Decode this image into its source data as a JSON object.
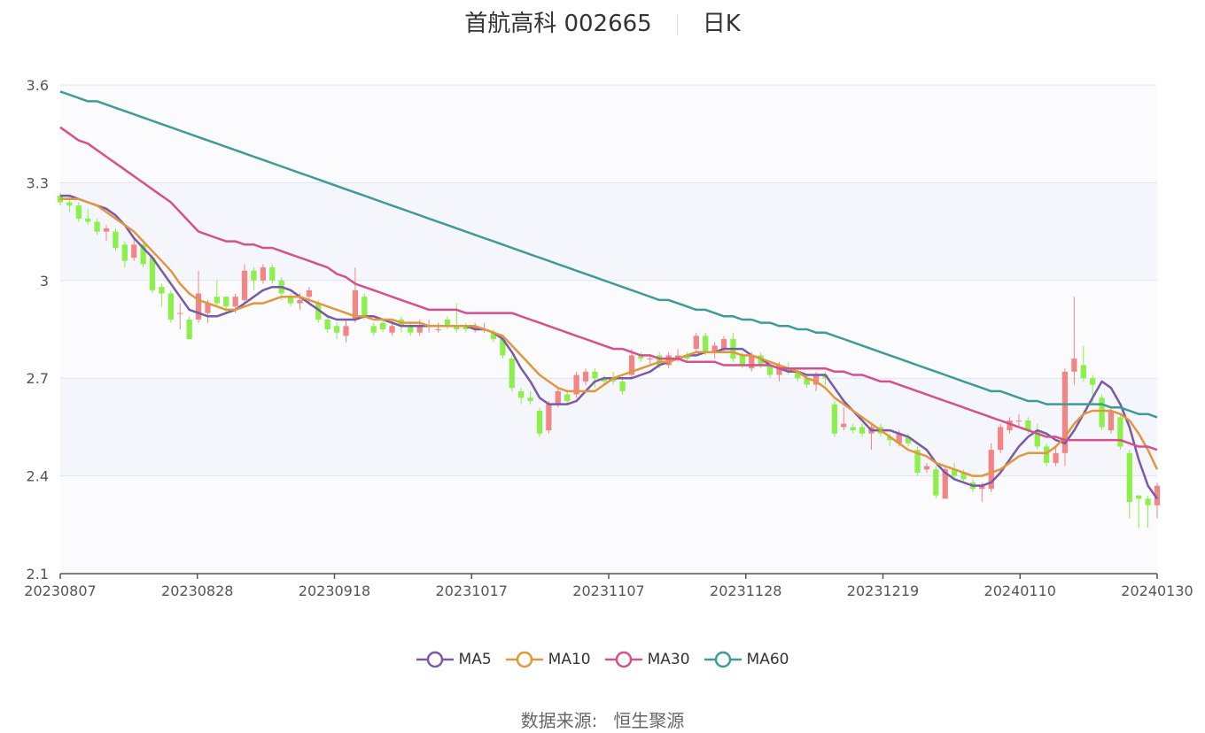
{
  "title": {
    "name": "首航高科 002665",
    "period": "日K"
  },
  "source": {
    "label": "数据来源:",
    "name": "恒生聚源"
  },
  "colors": {
    "up": "#f28585",
    "down": "#8bf049",
    "grid": "#dde3ef",
    "band": "#f5f6fb"
  },
  "chart_data": {
    "type": "candlestick",
    "y_ticks": [
      "2.1",
      "2.4",
      "2.7",
      "3",
      "3.3",
      "3.6"
    ],
    "ylim": [
      2.1,
      3.6
    ],
    "x_ticks": [
      "20230807",
      "20230828",
      "20230918",
      "20231017",
      "20231107",
      "20231128",
      "20231219",
      "20240110",
      "20240130"
    ],
    "n_bars": 120,
    "candles": [
      [
        3.26,
        3.24,
        3.27,
        3.23
      ],
      [
        3.24,
        3.23,
        3.26,
        3.21
      ],
      [
        3.23,
        3.19,
        3.24,
        3.18
      ],
      [
        3.19,
        3.18,
        3.22,
        3.17
      ],
      [
        3.18,
        3.15,
        3.19,
        3.14
      ],
      [
        3.15,
        3.16,
        3.17,
        3.12
      ],
      [
        3.15,
        3.1,
        3.16,
        3.09
      ],
      [
        3.11,
        3.06,
        3.12,
        3.04
      ],
      [
        3.07,
        3.11,
        3.13,
        3.06
      ],
      [
        3.11,
        3.05,
        3.12,
        3.04
      ],
      [
        3.07,
        2.97,
        3.08,
        2.96
      ],
      [
        2.98,
        2.96,
        2.99,
        2.92
      ],
      [
        2.96,
        2.88,
        2.97,
        2.87
      ],
      [
        2.9,
        2.9,
        2.93,
        2.85
      ],
      [
        2.88,
        2.82,
        2.89,
        2.82
      ],
      [
        2.88,
        2.96,
        3.03,
        2.87
      ],
      [
        2.9,
        2.93,
        2.94,
        2.87
      ],
      [
        2.95,
        2.93,
        3.0,
        2.92
      ],
      [
        2.95,
        2.92,
        2.95,
        2.9
      ],
      [
        2.92,
        2.95,
        2.96,
        2.9
      ],
      [
        2.94,
        3.03,
        3.05,
        2.93
      ],
      [
        3.03,
        3.0,
        3.04,
        2.97
      ],
      [
        3.0,
        3.04,
        3.05,
        2.99
      ],
      [
        3.04,
        3.0,
        3.05,
        2.99
      ],
      [
        3.0,
        2.96,
        3.01,
        2.94
      ],
      [
        2.95,
        2.93,
        2.96,
        2.92
      ],
      [
        2.93,
        2.94,
        2.96,
        2.91
      ],
      [
        2.95,
        2.97,
        2.98,
        2.93
      ],
      [
        2.93,
        2.88,
        2.94,
        2.87
      ],
      [
        2.88,
        2.85,
        2.89,
        2.84
      ],
      [
        2.86,
        2.84,
        2.87,
        2.82
      ],
      [
        2.83,
        2.86,
        2.88,
        2.81
      ],
      [
        2.88,
        2.97,
        3.04,
        2.87
      ],
      [
        2.95,
        2.89,
        2.96,
        2.88
      ],
      [
        2.86,
        2.84,
        2.87,
        2.83
      ],
      [
        2.87,
        2.85,
        2.88,
        2.84
      ],
      [
        2.84,
        2.86,
        2.88,
        2.83
      ],
      [
        2.88,
        2.86,
        2.89,
        2.84
      ],
      [
        2.86,
        2.84,
        2.87,
        2.83
      ],
      [
        2.84,
        2.86,
        2.88,
        2.83
      ],
      [
        2.86,
        2.86,
        2.88,
        2.84
      ],
      [
        2.85,
        2.85,
        2.87,
        2.84
      ],
      [
        2.88,
        2.86,
        2.89,
        2.85
      ],
      [
        2.86,
        2.85,
        2.93,
        2.84
      ],
      [
        2.86,
        2.85,
        2.87,
        2.84
      ],
      [
        2.85,
        2.86,
        2.87,
        2.84
      ],
      [
        2.85,
        2.85,
        2.87,
        2.84
      ],
      [
        2.84,
        2.82,
        2.85,
        2.81
      ],
      [
        2.82,
        2.77,
        2.83,
        2.76
      ],
      [
        2.76,
        2.67,
        2.77,
        2.66
      ],
      [
        2.66,
        2.64,
        2.67,
        2.62
      ],
      [
        2.64,
        2.63,
        2.66,
        2.62
      ],
      [
        2.6,
        2.53,
        2.61,
        2.52
      ],
      [
        2.54,
        2.62,
        2.63,
        2.53
      ],
      [
        2.62,
        2.66,
        2.67,
        2.61
      ],
      [
        2.65,
        2.63,
        2.66,
        2.62
      ],
      [
        2.65,
        2.71,
        2.72,
        2.64
      ],
      [
        2.69,
        2.72,
        2.73,
        2.68
      ],
      [
        2.72,
        2.7,
        2.73,
        2.67
      ],
      [
        2.7,
        2.69,
        2.71,
        2.68
      ],
      [
        2.7,
        2.69,
        2.72,
        2.68
      ],
      [
        2.69,
        2.66,
        2.7,
        2.65
      ],
      [
        2.71,
        2.77,
        2.79,
        2.7
      ],
      [
        2.77,
        2.76,
        2.78,
        2.75
      ],
      [
        2.76,
        2.76,
        2.77,
        2.74
      ],
      [
        2.77,
        2.74,
        2.78,
        2.73
      ],
      [
        2.74,
        2.77,
        2.78,
        2.73
      ],
      [
        2.76,
        2.77,
        2.79,
        2.75
      ],
      [
        2.77,
        2.76,
        2.78,
        2.75
      ],
      [
        2.79,
        2.83,
        2.84,
        2.78
      ],
      [
        2.83,
        2.78,
        2.84,
        2.77
      ],
      [
        2.78,
        2.8,
        2.81,
        2.76
      ],
      [
        2.79,
        2.82,
        2.83,
        2.78
      ],
      [
        2.82,
        2.76,
        2.84,
        2.75
      ],
      [
        2.77,
        2.74,
        2.78,
        2.73
      ],
      [
        2.73,
        2.77,
        2.78,
        2.72
      ],
      [
        2.77,
        2.74,
        2.78,
        2.73
      ],
      [
        2.74,
        2.71,
        2.75,
        2.7
      ],
      [
        2.71,
        2.74,
        2.75,
        2.69
      ],
      [
        2.73,
        2.72,
        2.75,
        2.71
      ],
      [
        2.72,
        2.7,
        2.73,
        2.69
      ],
      [
        2.7,
        2.68,
        2.71,
        2.67
      ],
      [
        2.68,
        2.71,
        2.72,
        2.66
      ],
      [
        2.71,
        2.7,
        2.72,
        2.68
      ],
      [
        2.62,
        2.53,
        2.63,
        2.52
      ],
      [
        2.55,
        2.56,
        2.61,
        2.54
      ],
      [
        2.55,
        2.54,
        2.56,
        2.53
      ],
      [
        2.55,
        2.53,
        2.56,
        2.52
      ],
      [
        2.53,
        2.55,
        2.56,
        2.48
      ],
      [
        2.55,
        2.53,
        2.56,
        2.52
      ],
      [
        2.52,
        2.51,
        2.53,
        2.49
      ],
      [
        2.5,
        2.53,
        2.54,
        2.49
      ],
      [
        2.52,
        2.5,
        2.53,
        2.49
      ],
      [
        2.48,
        2.41,
        2.49,
        2.4
      ],
      [
        2.42,
        2.43,
        2.44,
        2.41
      ],
      [
        2.42,
        2.34,
        2.43,
        2.33
      ],
      [
        2.33,
        2.42,
        2.43,
        2.33
      ],
      [
        2.42,
        2.4,
        2.44,
        2.39
      ],
      [
        2.41,
        2.39,
        2.42,
        2.38
      ],
      [
        2.38,
        2.36,
        2.39,
        2.35
      ],
      [
        2.36,
        2.37,
        2.38,
        2.32
      ],
      [
        2.36,
        2.48,
        2.5,
        2.35
      ],
      [
        2.48,
        2.55,
        2.56,
        2.47
      ],
      [
        2.54,
        2.57,
        2.58,
        2.53
      ],
      [
        2.57,
        2.57,
        2.59,
        2.55
      ],
      [
        2.57,
        2.54,
        2.58,
        2.53
      ],
      [
        2.54,
        2.49,
        2.56,
        2.48
      ],
      [
        2.49,
        2.44,
        2.5,
        2.43
      ],
      [
        2.44,
        2.47,
        2.49,
        2.43
      ],
      [
        2.47,
        2.72,
        2.73,
        2.43
      ],
      [
        2.72,
        2.76,
        2.95,
        2.68
      ],
      [
        2.74,
        2.7,
        2.8,
        2.69
      ],
      [
        2.7,
        2.68,
        2.71,
        2.62
      ],
      [
        2.64,
        2.55,
        2.65,
        2.54
      ],
      [
        2.54,
        2.6,
        2.61,
        2.53
      ],
      [
        2.58,
        2.49,
        2.59,
        2.48
      ],
      [
        2.47,
        2.32,
        2.48,
        2.27
      ],
      [
        2.34,
        2.33,
        2.34,
        2.24
      ],
      [
        2.33,
        2.31,
        2.34,
        2.24
      ],
      [
        2.31,
        2.37,
        2.38,
        2.27
      ]
    ],
    "series": [
      {
        "name": "MA5",
        "color": "#7a5aa6",
        "values": [
          3.26,
          3.26,
          3.25,
          3.24,
          3.23,
          3.22,
          3.2,
          3.17,
          3.13,
          3.1,
          3.07,
          3.03,
          2.99,
          2.95,
          2.91,
          2.9,
          2.89,
          2.89,
          2.9,
          2.91,
          2.93,
          2.95,
          2.97,
          2.98,
          2.98,
          2.97,
          2.95,
          2.93,
          2.91,
          2.89,
          2.88,
          2.88,
          2.88,
          2.89,
          2.89,
          2.88,
          2.87,
          2.86,
          2.86,
          2.86,
          2.86,
          2.86,
          2.86,
          2.86,
          2.86,
          2.85,
          2.85,
          2.84,
          2.82,
          2.78,
          2.73,
          2.69,
          2.64,
          2.62,
          2.62,
          2.62,
          2.63,
          2.66,
          2.69,
          2.7,
          2.7,
          2.7,
          2.7,
          2.71,
          2.72,
          2.74,
          2.75,
          2.76,
          2.77,
          2.77,
          2.78,
          2.78,
          2.79,
          2.79,
          2.79,
          2.77,
          2.76,
          2.74,
          2.73,
          2.72,
          2.72,
          2.71,
          2.71,
          2.71,
          2.67,
          2.63,
          2.6,
          2.57,
          2.54,
          2.54,
          2.54,
          2.53,
          2.52,
          2.5,
          2.48,
          2.44,
          2.41,
          2.39,
          2.38,
          2.37,
          2.37,
          2.38,
          2.41,
          2.45,
          2.49,
          2.52,
          2.54,
          2.53,
          2.51,
          2.5,
          2.54,
          2.59,
          2.64,
          2.69,
          2.67,
          2.62,
          2.55,
          2.45,
          2.37,
          2.33
        ]
      },
      {
        "name": "MA10",
        "color": "#e0973e",
        "values": [
          3.25,
          3.25,
          3.25,
          3.24,
          3.23,
          3.21,
          3.19,
          3.17,
          3.15,
          3.12,
          3.09,
          3.06,
          3.03,
          2.99,
          2.96,
          2.94,
          2.93,
          2.92,
          2.91,
          2.91,
          2.92,
          2.93,
          2.93,
          2.94,
          2.95,
          2.95,
          2.95,
          2.94,
          2.93,
          2.92,
          2.91,
          2.9,
          2.89,
          2.89,
          2.88,
          2.88,
          2.88,
          2.87,
          2.87,
          2.87,
          2.86,
          2.86,
          2.86,
          2.86,
          2.86,
          2.86,
          2.85,
          2.84,
          2.83,
          2.8,
          2.77,
          2.74,
          2.71,
          2.69,
          2.67,
          2.66,
          2.66,
          2.66,
          2.66,
          2.68,
          2.7,
          2.71,
          2.72,
          2.73,
          2.74,
          2.75,
          2.75,
          2.76,
          2.77,
          2.78,
          2.78,
          2.78,
          2.78,
          2.78,
          2.77,
          2.77,
          2.76,
          2.75,
          2.74,
          2.73,
          2.72,
          2.7,
          2.69,
          2.67,
          2.64,
          2.62,
          2.6,
          2.58,
          2.56,
          2.54,
          2.52,
          2.5,
          2.48,
          2.47,
          2.46,
          2.44,
          2.43,
          2.42,
          2.41,
          2.4,
          2.4,
          2.41,
          2.42,
          2.44,
          2.46,
          2.47,
          2.47,
          2.47,
          2.49,
          2.52,
          2.56,
          2.59,
          2.6,
          2.6,
          2.6,
          2.59,
          2.57,
          2.53,
          2.48,
          2.42
        ]
      },
      {
        "name": "MA30",
        "color": "#d4508f",
        "values": [
          3.47,
          3.45,
          3.43,
          3.42,
          3.4,
          3.38,
          3.36,
          3.34,
          3.32,
          3.3,
          3.28,
          3.26,
          3.24,
          3.21,
          3.18,
          3.15,
          3.14,
          3.13,
          3.12,
          3.12,
          3.11,
          3.11,
          3.1,
          3.1,
          3.09,
          3.08,
          3.07,
          3.06,
          3.05,
          3.04,
          3.02,
          3.01,
          2.99,
          2.98,
          2.97,
          2.96,
          2.95,
          2.94,
          2.93,
          2.92,
          2.91,
          2.91,
          2.91,
          2.91,
          2.9,
          2.9,
          2.9,
          2.9,
          2.9,
          2.9,
          2.89,
          2.88,
          2.87,
          2.86,
          2.85,
          2.84,
          2.83,
          2.82,
          2.81,
          2.8,
          2.79,
          2.79,
          2.78,
          2.77,
          2.77,
          2.76,
          2.76,
          2.76,
          2.75,
          2.75,
          2.75,
          2.75,
          2.74,
          2.74,
          2.74,
          2.74,
          2.74,
          2.74,
          2.73,
          2.73,
          2.73,
          2.73,
          2.73,
          2.73,
          2.72,
          2.72,
          2.71,
          2.71,
          2.7,
          2.69,
          2.69,
          2.68,
          2.67,
          2.66,
          2.65,
          2.64,
          2.63,
          2.62,
          2.61,
          2.6,
          2.59,
          2.58,
          2.57,
          2.56,
          2.55,
          2.54,
          2.53,
          2.52,
          2.52,
          2.51,
          2.51,
          2.51,
          2.51,
          2.51,
          2.51,
          2.51,
          2.5,
          2.49,
          2.49,
          2.48
        ]
      },
      {
        "name": "MA60",
        "color": "#3f9a98",
        "values": [
          3.58,
          3.57,
          3.56,
          3.55,
          3.55,
          3.54,
          3.53,
          3.52,
          3.51,
          3.5,
          3.49,
          3.48,
          3.47,
          3.46,
          3.45,
          3.44,
          3.43,
          3.42,
          3.41,
          3.4,
          3.39,
          3.38,
          3.37,
          3.36,
          3.35,
          3.34,
          3.33,
          3.32,
          3.31,
          3.3,
          3.29,
          3.28,
          3.27,
          3.26,
          3.25,
          3.24,
          3.23,
          3.22,
          3.21,
          3.2,
          3.19,
          3.18,
          3.17,
          3.16,
          3.15,
          3.14,
          3.13,
          3.12,
          3.11,
          3.1,
          3.09,
          3.08,
          3.07,
          3.06,
          3.05,
          3.04,
          3.03,
          3.02,
          3.01,
          3.0,
          2.99,
          2.98,
          2.97,
          2.96,
          2.95,
          2.94,
          2.94,
          2.93,
          2.92,
          2.91,
          2.91,
          2.9,
          2.89,
          2.89,
          2.88,
          2.88,
          2.87,
          2.87,
          2.86,
          2.86,
          2.85,
          2.85,
          2.84,
          2.84,
          2.83,
          2.82,
          2.81,
          2.8,
          2.79,
          2.78,
          2.77,
          2.76,
          2.75,
          2.74,
          2.73,
          2.72,
          2.71,
          2.7,
          2.69,
          2.68,
          2.67,
          2.66,
          2.66,
          2.65,
          2.64,
          2.63,
          2.63,
          2.62,
          2.62,
          2.62,
          2.62,
          2.62,
          2.62,
          2.62,
          2.61,
          2.61,
          2.6,
          2.59,
          2.59,
          2.58
        ]
      }
    ],
    "legend_position": "bottom-center"
  }
}
